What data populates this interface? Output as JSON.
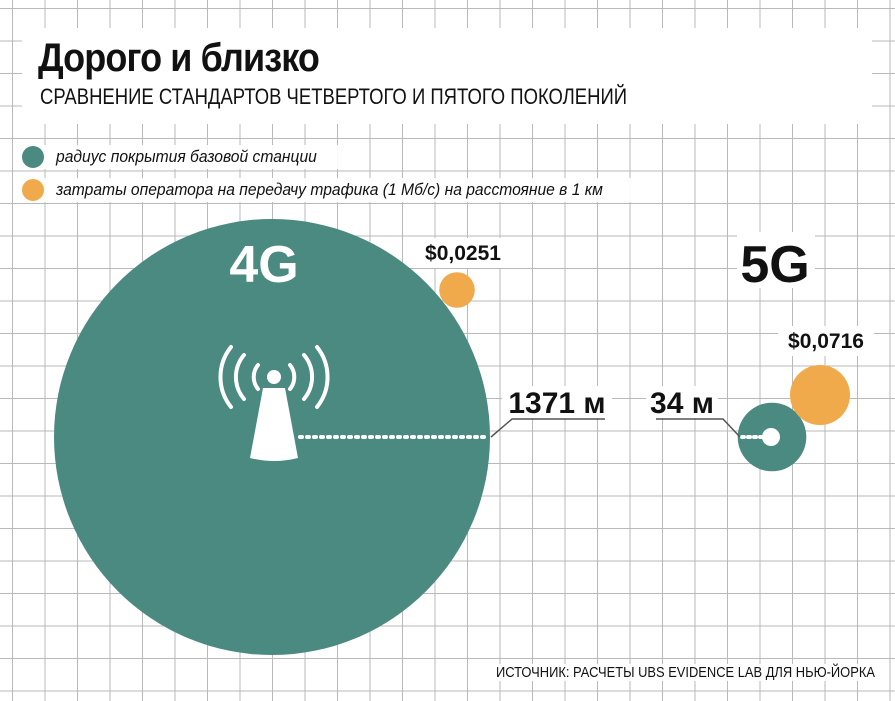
{
  "header": {
    "title": "Дорого и близко",
    "subtitle": "СРАВНЕНИЕ СТАНДАРТОВ ЧЕТВЕРТОГО И ПЯТОГО ПОКОЛЕНИЙ"
  },
  "legend": [
    {
      "label": "радиус покрытия базовой станции",
      "color": "#4a8a80"
    },
    {
      "label": "затраты оператора на передачу трафика (1 Мб/с) на расстояние в 1 км",
      "color": "#f0aa4c"
    }
  ],
  "source": "ИСТОЧНИК: РАСЧЕТЫ UBS EVIDENCE LAB ДЛЯ НЬЮ-ЙОРКА",
  "chart_data": {
    "type": "bubble",
    "categories": [
      "4G",
      "5G"
    ],
    "series": [
      {
        "name": "радиус покрытия базовой станции",
        "color": "#4a8a80",
        "values": [
          1371,
          34
        ],
        "labels": [
          "1371 м",
          "34 м"
        ]
      },
      {
        "name": "затраты оператора на передачу трафика (1 Мб/с) на расстояние в 1 км",
        "color": "#f0aa4c",
        "values": [
          0.0251,
          0.0716
        ],
        "labels": [
          "$0,0251",
          "$0,0716"
        ]
      }
    ],
    "grid": true,
    "legend_position": "top-left"
  }
}
